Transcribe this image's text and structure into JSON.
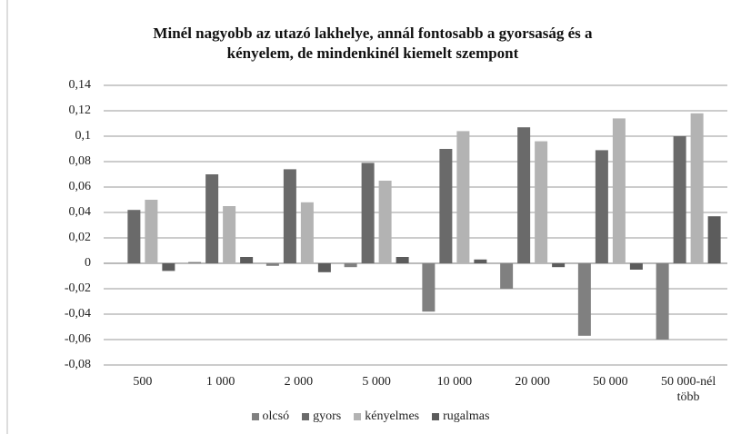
{
  "chart_data": {
    "type": "bar",
    "title": "Minél nagyobb az utazó lakhelye, annál fontosabb a gyorsaság és a kényelem, de mindenkinél kiemelt szempont",
    "categories": [
      "500",
      "1 000",
      "2 000",
      "5 000",
      "10 000",
      "20 000",
      "50 000",
      "50 000-nél több"
    ],
    "series": [
      {
        "name": "olcsó",
        "color": "#808080",
        "values": [
          0,
          0.001,
          -0.002,
          -0.003,
          -0.038,
          -0.02,
          -0.057,
          -0.06
        ]
      },
      {
        "name": "gyors",
        "color": "#6a6a6a",
        "values": [
          0.042,
          0.07,
          0.074,
          0.079,
          0.09,
          0.107,
          0.089,
          0.1
        ]
      },
      {
        "name": "kényelmes",
        "color": "#b3b3b3",
        "values": [
          0.05,
          0.045,
          0.048,
          0.065,
          0.104,
          0.096,
          0.114,
          0.118
        ]
      },
      {
        "name": "rugalmas",
        "color": "#5c5c5c",
        "values": [
          -0.006,
          0.005,
          -0.007,
          0.005,
          0.003,
          -0.003,
          -0.005,
          0.037
        ]
      }
    ],
    "ylim": [
      -0.08,
      0.14
    ],
    "yticks": [
      {
        "value": -0.08,
        "label": "-0,08"
      },
      {
        "value": -0.06,
        "label": "-0,06"
      },
      {
        "value": -0.04,
        "label": "-0,04"
      },
      {
        "value": -0.02,
        "label": "-0,02"
      },
      0,
      {
        "value": 0.02,
        "label": "0,02"
      },
      {
        "value": 0.04,
        "label": "0,04"
      },
      {
        "value": 0.06,
        "label": "0,06"
      },
      {
        "value": 0.08,
        "label": "0,08"
      },
      {
        "value": 0.1,
        "label": "0,1"
      },
      {
        "value": 0.12,
        "label": "0,12"
      },
      {
        "value": 0.14,
        "label": "0,14"
      }
    ],
    "grid": true,
    "legend": "bottom"
  }
}
